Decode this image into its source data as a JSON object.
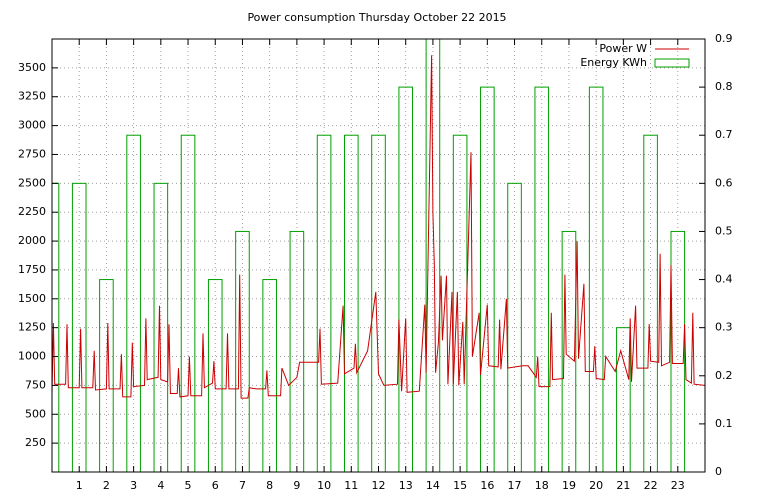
{
  "chart_data": {
    "type": "line",
    "title": "Power consumption Thursday October 22 2015",
    "xlim": [
      0,
      24
    ],
    "xticks": [
      1,
      2,
      3,
      4,
      5,
      6,
      7,
      8,
      9,
      10,
      11,
      12,
      13,
      14,
      15,
      16,
      17,
      18,
      19,
      20,
      21,
      22,
      23
    ],
    "ylim": [
      0,
      3750
    ],
    "yticks": [
      250,
      500,
      750,
      1000,
      1250,
      1500,
      1750,
      2000,
      2250,
      2500,
      2750,
      3000,
      3250,
      3500
    ],
    "y2lim": [
      0,
      0.9
    ],
    "y2ticks": [
      0,
      0.1,
      0.2,
      0.3,
      0.4,
      0.5,
      0.6,
      0.7,
      0.8,
      0.9
    ],
    "grid": true,
    "legend": "top-right",
    "series": [
      {
        "name": "Power W",
        "type": "line",
        "color": "#cc0000",
        "x": [
          0,
          0.05,
          0.1,
          0.5,
          0.55,
          0.6,
          1.0,
          1.05,
          1.1,
          1.5,
          1.55,
          1.6,
          2.0,
          2.05,
          2.1,
          2.5,
          2.55,
          2.6,
          2.9,
          2.95,
          3.0,
          3.4,
          3.45,
          3.5,
          3.9,
          3.95,
          4.0,
          4.25,
          4.3,
          4.35,
          4.6,
          4.65,
          4.7,
          5.0,
          5.05,
          5.1,
          5.5,
          5.55,
          5.6,
          5.9,
          5.95,
          6.0,
          6.4,
          6.45,
          6.5,
          6.85,
          6.9,
          6.95,
          7.2,
          7.25,
          7.5,
          7.85,
          7.9,
          7.95,
          8.4,
          8.45,
          8.7,
          9.0,
          9.1,
          9.8,
          9.85,
          9.9,
          10.5,
          10.7,
          10.75,
          11.1,
          11.15,
          11.2,
          11.6,
          11.9,
          12.0,
          12.2,
          12.7,
          12.75,
          12.85,
          13.0,
          13.05,
          13.5,
          13.7,
          13.75,
          13.95,
          14.0,
          14.05,
          14.1,
          14.2,
          14.3,
          14.35,
          14.5,
          14.55,
          14.7,
          14.75,
          14.9,
          14.95,
          15.1,
          15.15,
          15.4,
          15.45,
          15.7,
          15.75,
          16.0,
          16.05,
          16.4,
          16.45,
          16.5,
          16.7,
          16.75,
          17.3,
          17.5,
          17.8,
          17.85,
          17.9,
          18.3,
          18.35,
          18.4,
          18.8,
          18.85,
          18.9,
          19.2,
          19.3,
          19.35,
          19.55,
          19.6,
          19.9,
          19.95,
          20.0,
          20.3,
          20.35,
          20.7,
          20.9,
          21.2,
          21.25,
          21.3,
          21.45,
          21.5,
          21.9,
          21.95,
          22.0,
          22.3,
          22.35,
          22.4,
          22.7,
          22.75,
          22.8,
          23.2,
          23.25,
          23.3,
          23.5,
          23.55,
          23.6,
          24.0
        ],
        "values": [
          680,
          1290,
          760,
          760,
          1280,
          730,
          730,
          1240,
          730,
          730,
          1050,
          710,
          720,
          1290,
          720,
          720,
          1020,
          650,
          650,
          1120,
          740,
          750,
          1330,
          800,
          820,
          1440,
          800,
          780,
          1280,
          680,
          680,
          900,
          650,
          660,
          1000,
          660,
          660,
          1200,
          730,
          770,
          960,
          720,
          720,
          1200,
          720,
          720,
          1710,
          640,
          640,
          730,
          720,
          720,
          880,
          660,
          660,
          900,
          750,
          820,
          950,
          950,
          1240,
          760,
          770,
          1440,
          850,
          900,
          1110,
          860,
          1050,
          1560,
          850,
          750,
          760,
          1320,
          700,
          1330,
          690,
          700,
          1450,
          860,
          3610,
          2250,
          1800,
          860,
          1120,
          1700,
          1140,
          1700,
          760,
          1560,
          760,
          1560,
          750,
          1300,
          760,
          2770,
          1000,
          1380,
          840,
          1450,
          920,
          910,
          1320,
          890,
          1500,
          900,
          920,
          920,
          820,
          1000,
          740,
          740,
          1380,
          800,
          810,
          1710,
          1020,
          960,
          2000,
          980,
          1630,
          870,
          870,
          1090,
          810,
          800,
          1000,
          870,
          1050,
          800,
          1330,
          780,
          1440,
          900,
          900,
          1280,
          960,
          950,
          1890,
          920,
          950,
          1790,
          940,
          940,
          1280,
          800,
          770,
          1380,
          760,
          750
        ]
      },
      {
        "name": "Energy KWh",
        "type": "bar",
        "axis": "y2",
        "color": "#00a000",
        "x": [
          0,
          1,
          2,
          3,
          4,
          5,
          6,
          7,
          8,
          9,
          10,
          11,
          12,
          13,
          14,
          15,
          16,
          17,
          18,
          19,
          20,
          21,
          22,
          23
        ],
        "values": [
          0.6,
          0.6,
          0.4,
          0.7,
          0.6,
          0.7,
          0.4,
          0.5,
          0.4,
          0.5,
          0.7,
          0.7,
          0.7,
          0.8,
          0.9,
          0.7,
          0.8,
          0.6,
          0.8,
          0.5,
          0.8,
          0.3,
          0.7,
          0.5
        ]
      }
    ]
  }
}
